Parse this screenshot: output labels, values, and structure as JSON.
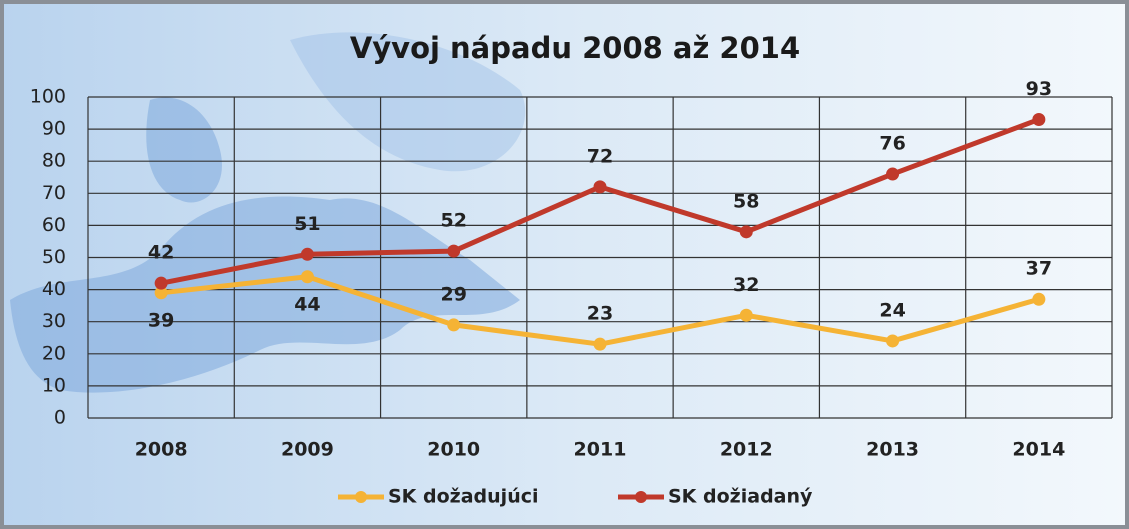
{
  "chart_data": {
    "type": "line",
    "title": "Vývoj nápadu 2008 až 2014",
    "categories": [
      "2008",
      "2009",
      "2010",
      "2011",
      "2012",
      "2013",
      "2014"
    ],
    "series": [
      {
        "name": "SK dožadujúci",
        "color": "#f5b335",
        "values": [
          39,
          44,
          29,
          23,
          32,
          24,
          37
        ]
      },
      {
        "name": "SK dožiadaný",
        "color": "#c0392b",
        "values": [
          42,
          51,
          52,
          72,
          58,
          76,
          93
        ]
      }
    ],
    "ylim": [
      0,
      100
    ],
    "yticks": [
      0,
      10,
      20,
      30,
      40,
      50,
      60,
      70,
      80,
      90,
      100
    ],
    "grid": true,
    "legend": "bottom"
  }
}
